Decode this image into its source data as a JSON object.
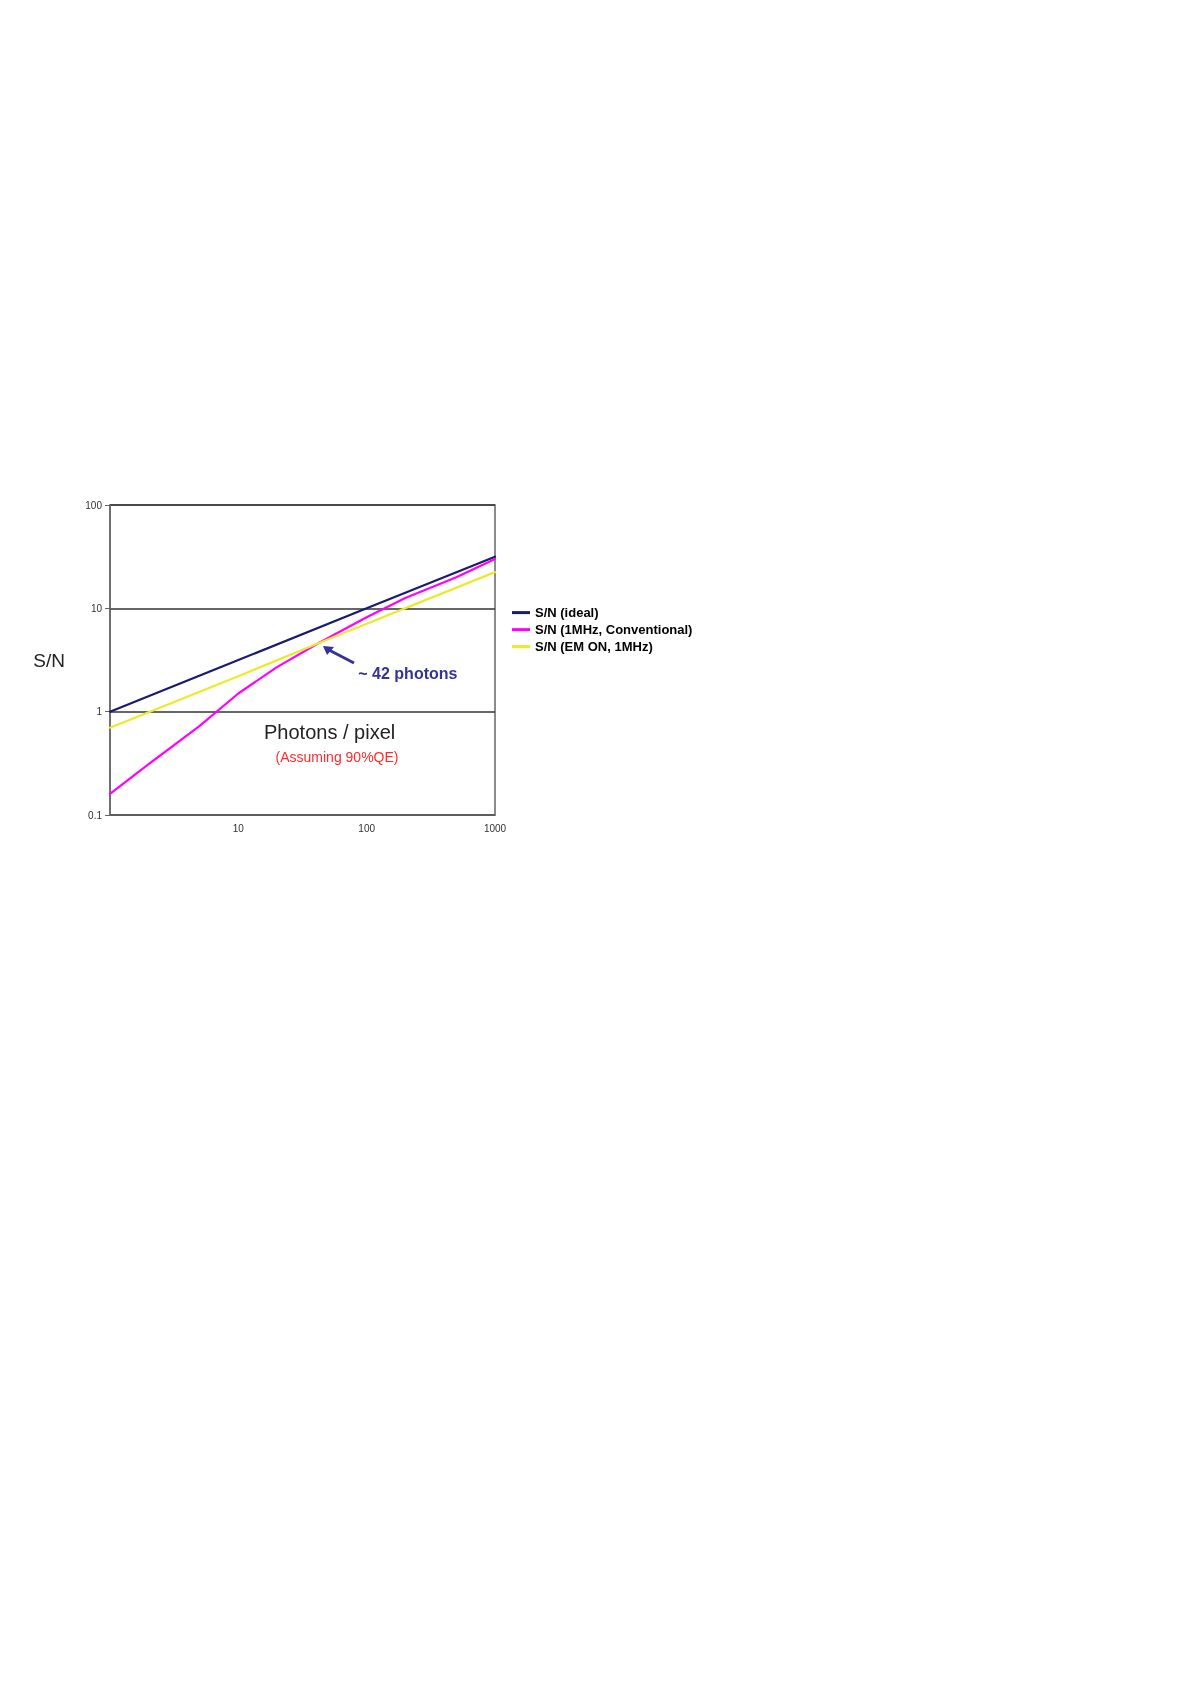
{
  "chart_data": {
    "type": "line",
    "xlabel": "Photons / pixel",
    "ylabel": "S/N",
    "log": "xy",
    "xlim": [
      1,
      1000
    ],
    "xticks": [
      10,
      100,
      1000
    ],
    "ylim": [
      0.1,
      100
    ],
    "yticks": [
      0.1,
      1,
      10,
      100
    ],
    "grid": "y",
    "legend": "right",
    "marker": "none",
    "line_style": "solid",
    "series": [
      {
        "name": "S/N (ideal)",
        "color": "#1a1a6e",
        "x": [
          1,
          10,
          100,
          1000
        ],
        "values": [
          1,
          3.16,
          10,
          31.6
        ]
      },
      {
        "name": "S/N (1MHz, Conventional)",
        "color": "#ff00ff",
        "x": [
          1,
          2,
          5,
          10,
          20,
          42,
          100,
          200,
          500,
          1000
        ],
        "values": [
          0.16,
          0.31,
          0.73,
          1.5,
          2.7,
          4.6,
          8.2,
          12.6,
          20,
          30
        ]
      },
      {
        "name": "S/N (EM ON, 1MHz)",
        "color": "#eaea2a",
        "x": [
          1,
          10,
          42,
          100,
          1000
        ],
        "values": [
          0.7,
          2.2,
          4.6,
          7.1,
          22.4
        ]
      }
    ],
    "annotations": [
      {
        "text": "~ 42 photons",
        "x": 42,
        "y": 4.6
      },
      "(Assuming 90%QE)"
    ]
  }
}
